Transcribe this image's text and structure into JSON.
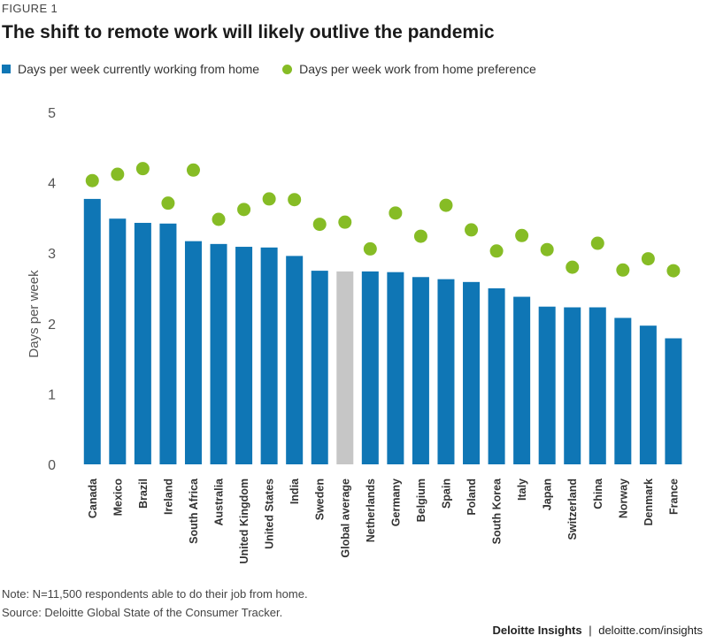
{
  "figure_label": "FIGURE 1",
  "footer": {
    "brand": "Deloitte Insights",
    "separator": "|",
    "site": "deloitte.com/insights"
  },
  "note": "Note: N=11,500 respondents able to do their job from home.",
  "source": "Source: Deloitte Global State of the Consumer Tracker.",
  "colors": {
    "current": "#0f76b5",
    "average": "#c6c6c6",
    "preference": "#86bc25"
  },
  "chart_data": {
    "type": "bar",
    "title": "The shift to remote work will likely outlive the pandemic",
    "ylabel": "Days per week",
    "xlabel": "",
    "ylim": [
      0,
      5
    ],
    "yticks": [
      0,
      1,
      2,
      3,
      4,
      5
    ],
    "grid": false,
    "legend_position": "top-left",
    "categories": [
      "Canada",
      "Mexico",
      "Brazil",
      "Ireland",
      "South Africa",
      "Australia",
      "United Kingdom",
      "United States",
      "India",
      "Sweden",
      "Global average",
      "Netherlands",
      "Germany",
      "Belgium",
      "Spain",
      "Poland",
      "South Korea",
      "Italy",
      "Japan",
      "Switzerland",
      "China",
      "Norway",
      "Denmark",
      "France"
    ],
    "highlight_category": "Global average",
    "series": [
      {
        "name": "Days per week currently working from home",
        "kind": "bar",
        "values": [
          3.77,
          3.49,
          3.43,
          3.42,
          3.17,
          3.13,
          3.09,
          3.08,
          2.96,
          2.75,
          2.74,
          2.74,
          2.73,
          2.66,
          2.63,
          2.59,
          2.5,
          2.38,
          2.24,
          2.23,
          2.23,
          2.08,
          1.97,
          1.79
        ]
      },
      {
        "name": "Days per week work from home preference",
        "kind": "dot",
        "values": [
          4.03,
          4.12,
          4.2,
          3.71,
          4.18,
          3.48,
          3.62,
          3.77,
          3.76,
          3.41,
          3.44,
          3.06,
          3.57,
          3.24,
          3.68,
          3.33,
          3.03,
          3.25,
          3.05,
          2.8,
          3.14,
          2.76,
          2.92,
          2.75
        ]
      }
    ]
  }
}
